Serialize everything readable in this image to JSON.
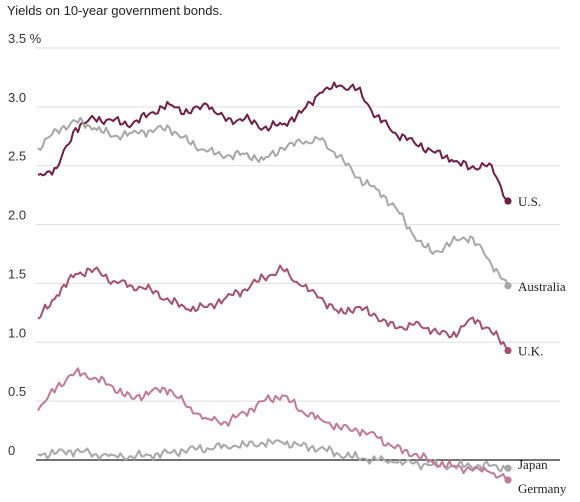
{
  "chart_data": {
    "type": "line",
    "title": "Yields on 10-year government bonds.",
    "xlabel": "",
    "ylabel": "",
    "ylim": [
      -0.25,
      3.5
    ],
    "y_ticks": [
      {
        "value": 3.5,
        "label": "3.5 %"
      },
      {
        "value": 3.0,
        "label": "3.0"
      },
      {
        "value": 2.5,
        "label": "2.5"
      },
      {
        "value": 2.0,
        "label": "2.0"
      },
      {
        "value": 1.5,
        "label": "1.5"
      },
      {
        "value": 1.0,
        "label": "1.0"
      },
      {
        "value": 0.5,
        "label": "0.5"
      },
      {
        "value": 0,
        "label": "0"
      }
    ],
    "grid": true,
    "legend": "direct labels at line ends (right)",
    "series": [
      {
        "name": "U.S.",
        "color": "#6e1f45",
        "x": [
          0,
          0.04,
          0.08,
          0.12,
          0.16,
          0.2,
          0.24,
          0.28,
          0.32,
          0.36,
          0.4,
          0.44,
          0.48,
          0.52,
          0.56,
          0.6,
          0.64,
          0.68,
          0.72,
          0.76,
          0.8,
          0.84,
          0.88,
          0.92,
          0.96,
          1.0
        ],
        "values": [
          2.42,
          2.48,
          2.82,
          2.9,
          2.88,
          2.85,
          2.95,
          3.02,
          2.95,
          3.02,
          2.88,
          2.9,
          2.82,
          2.85,
          2.95,
          3.12,
          3.18,
          3.15,
          2.92,
          2.78,
          2.7,
          2.62,
          2.55,
          2.48,
          2.52,
          2.2
        ]
      },
      {
        "name": "Australia",
        "color": "#a7a7a7",
        "x": [
          0,
          0.04,
          0.08,
          0.12,
          0.16,
          0.2,
          0.24,
          0.28,
          0.32,
          0.36,
          0.4,
          0.44,
          0.48,
          0.52,
          0.56,
          0.6,
          0.64,
          0.68,
          0.72,
          0.76,
          0.8,
          0.84,
          0.88,
          0.92,
          0.96,
          1.0
        ],
        "values": [
          2.65,
          2.8,
          2.88,
          2.82,
          2.75,
          2.78,
          2.8,
          2.82,
          2.7,
          2.62,
          2.58,
          2.6,
          2.55,
          2.65,
          2.7,
          2.72,
          2.58,
          2.4,
          2.3,
          2.15,
          1.9,
          1.75,
          1.85,
          1.9,
          1.7,
          1.48
        ]
      },
      {
        "name": "U.K.",
        "color": "#a5506e",
        "x": [
          0,
          0.04,
          0.08,
          0.12,
          0.16,
          0.2,
          0.24,
          0.28,
          0.32,
          0.36,
          0.4,
          0.44,
          0.48,
          0.52,
          0.56,
          0.6,
          0.64,
          0.68,
          0.72,
          0.76,
          0.8,
          0.84,
          0.88,
          0.92,
          0.96,
          1.0
        ],
        "values": [
          1.2,
          1.4,
          1.58,
          1.62,
          1.52,
          1.48,
          1.45,
          1.35,
          1.28,
          1.3,
          1.38,
          1.45,
          1.55,
          1.62,
          1.48,
          1.38,
          1.25,
          1.3,
          1.22,
          1.12,
          1.15,
          1.1,
          1.05,
          1.2,
          1.12,
          0.93
        ]
      },
      {
        "name": "Japan",
        "color": "#a7a7a7",
        "x": [
          0,
          0.04,
          0.08,
          0.12,
          0.16,
          0.2,
          0.24,
          0.28,
          0.32,
          0.36,
          0.4,
          0.44,
          0.48,
          0.52,
          0.56,
          0.6,
          0.64,
          0.68,
          0.72,
          0.76,
          0.8,
          0.84,
          0.88,
          0.92,
          0.96,
          1.0
        ],
        "values": [
          0.05,
          0.06,
          0.08,
          0.05,
          0.04,
          0.03,
          0.04,
          0.06,
          0.09,
          0.1,
          0.12,
          0.13,
          0.14,
          0.15,
          0.12,
          0.1,
          0.05,
          0.02,
          0.0,
          -0.02,
          -0.03,
          -0.04,
          -0.05,
          -0.05,
          -0.05,
          -0.07
        ]
      },
      {
        "name": "Germany",
        "color": "#c07a95",
        "x": [
          0,
          0.04,
          0.08,
          0.12,
          0.16,
          0.2,
          0.24,
          0.28,
          0.32,
          0.36,
          0.4,
          0.44,
          0.48,
          0.52,
          0.56,
          0.6,
          0.64,
          0.68,
          0.72,
          0.76,
          0.8,
          0.84,
          0.88,
          0.92,
          0.96,
          1.0
        ],
        "values": [
          0.42,
          0.62,
          0.75,
          0.7,
          0.62,
          0.52,
          0.58,
          0.6,
          0.45,
          0.35,
          0.32,
          0.4,
          0.5,
          0.55,
          0.42,
          0.35,
          0.28,
          0.25,
          0.2,
          0.1,
          0.05,
          -0.02,
          -0.05,
          -0.08,
          -0.1,
          -0.17
        ]
      }
    ]
  }
}
